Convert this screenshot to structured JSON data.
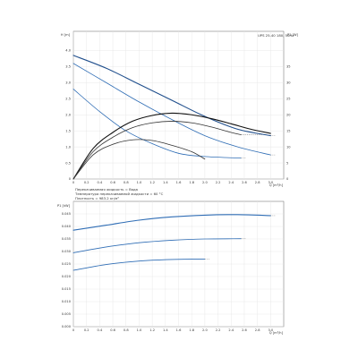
{
  "chart_data": [
    {
      "type": "line",
      "title": "UPS 25-40 180, 50Hz",
      "ylabel": "H [m]",
      "y2label": "P1 [W]",
      "xlabel": "Q [m³/h]",
      "ylim": [
        0,
        4.6
      ],
      "y2lim": [
        0,
        46
      ],
      "xlim": [
        0,
        3.2
      ],
      "x_ticks": [
        "0",
        "0.2",
        "0.4",
        "0.6",
        "0.8",
        "1.0",
        "1.2",
        "1.4",
        "1.6",
        "1.8",
        "2.0",
        "2.2",
        "2.4",
        "2.6",
        "2.8",
        "3.0"
      ],
      "y_ticks": [
        "0",
        "0.5",
        "1.0",
        "1.5",
        "2.0",
        "2.5",
        "3.0",
        "3.5",
        "4.0"
      ],
      "y2_ticks": [
        "0",
        "5",
        "10",
        "15",
        "20",
        "25",
        "30",
        "35"
      ],
      "grid": true,
      "notes": [
        "Перекачиваемая жидкость = Вода",
        "Температура перекачиваемой жидкости = 60 °C",
        "Плотность = 983.2 кг/м³"
      ],
      "series": [
        {
          "kind": "pump-curve",
          "x": [
            0,
            0.5,
            1.0,
            1.5,
            2.0,
            2.5,
            3.0
          ],
          "values": [
            3.85,
            3.45,
            2.95,
            2.45,
            1.95,
            1.55,
            1.35
          ]
        },
        {
          "kind": "pump-curve",
          "x": [
            0,
            0.5,
            1.0,
            1.5,
            2.0,
            2.5,
            3.0
          ],
          "values": [
            3.6,
            3.0,
            2.4,
            1.85,
            1.35,
            1.0,
            0.75
          ]
        },
        {
          "kind": "pump-curve",
          "x": [
            0,
            0.4,
            0.8,
            1.2,
            1.6,
            2.0,
            2.55
          ],
          "values": [
            2.8,
            2.1,
            1.5,
            1.1,
            0.8,
            0.7,
            0.65
          ]
        },
        {
          "kind": "efficiency",
          "x": [
            0,
            0.3,
            0.6,
            0.9,
            1.2,
            1.5,
            1.8,
            2.1,
            2.4,
            2.7,
            3.0
          ],
          "values": [
            0,
            0.95,
            1.45,
            1.8,
            1.98,
            2.05,
            2.0,
            1.88,
            1.72,
            1.55,
            1.42
          ]
        },
        {
          "kind": "efficiency",
          "x": [
            0,
            0.3,
            0.6,
            0.9,
            1.2,
            1.5,
            1.8,
            2.1,
            2.4,
            2.55
          ],
          "values": [
            0,
            0.85,
            1.3,
            1.6,
            1.75,
            1.8,
            1.75,
            1.62,
            1.45,
            1.38
          ]
        },
        {
          "kind": "efficiency",
          "x": [
            0,
            0.3,
            0.6,
            0.9,
            1.2,
            1.5,
            1.8,
            2.0
          ],
          "values": [
            0,
            0.75,
            1.08,
            1.22,
            1.2,
            1.05,
            0.85,
            0.62
          ]
        }
      ]
    },
    {
      "type": "line",
      "ylabel": "P1 [kW]",
      "xlabel": "Q [m³/h]",
      "ylim": [
        0,
        0.05
      ],
      "xlim": [
        0,
        3.2
      ],
      "y_ticks": [
        "0.000",
        "0.005",
        "0.010",
        "0.015",
        "0.020",
        "0.025",
        "0.030",
        "0.035",
        "0.040",
        "0.045"
      ],
      "grid": true,
      "series": [
        {
          "x": [
            0,
            0.5,
            1.0,
            1.5,
            2.0,
            2.5,
            3.0
          ],
          "values": [
            0.0385,
            0.0405,
            0.0425,
            0.0438,
            0.0445,
            0.0447,
            0.0443
          ]
        },
        {
          "x": [
            0,
            0.5,
            1.0,
            1.5,
            2.0,
            2.55
          ],
          "values": [
            0.0295,
            0.0318,
            0.0335,
            0.0345,
            0.035,
            0.0351
          ]
        },
        {
          "x": [
            0,
            0.5,
            1.0,
            1.5,
            2.0
          ],
          "values": [
            0.0225,
            0.0248,
            0.0262,
            0.0268,
            0.027
          ]
        }
      ]
    }
  ]
}
